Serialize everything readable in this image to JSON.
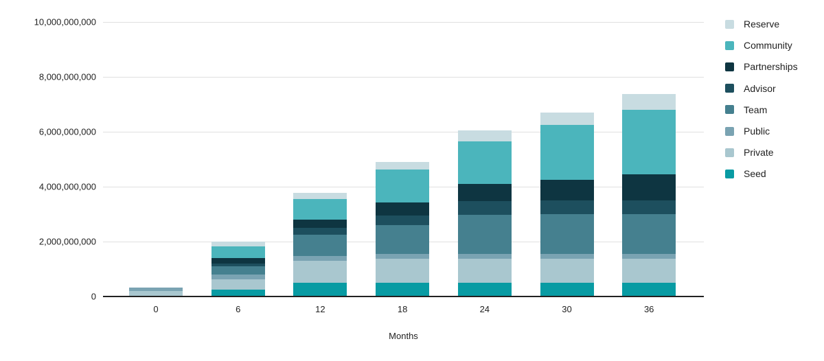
{
  "chart_data": {
    "type": "bar",
    "stacked": true,
    "xlabel": "Months",
    "ylabel": "",
    "categories": [
      "0",
      "6",
      "12",
      "18",
      "24",
      "30",
      "36"
    ],
    "ylim": [
      0,
      10000000000
    ],
    "grid": true,
    "legend_position": "right",
    "yticks": [
      {
        "value": 0,
        "label": "0"
      },
      {
        "value": 2000000000,
        "label": "2,000,000,000"
      },
      {
        "value": 4000000000,
        "label": "4,000,000,000"
      },
      {
        "value": 6000000000,
        "label": "6,000,000,000"
      },
      {
        "value": 8000000000,
        "label": "8,000,000,000"
      },
      {
        "value": 10000000000,
        "label": "10,000,000,000"
      }
    ],
    "series": [
      {
        "name": "Seed",
        "color": "#089BA3",
        "values": [
          0,
          250000000,
          500000000,
          500000000,
          500000000,
          500000000,
          500000000
        ]
      },
      {
        "name": "Private",
        "color": "#A9C7CF",
        "values": [
          200000000,
          375000000,
          800000000,
          875000000,
          875000000,
          875000000,
          875000000
        ]
      },
      {
        "name": "Public",
        "color": "#7AA3B2",
        "values": [
          125000000,
          175000000,
          175000000,
          175000000,
          175000000,
          175000000,
          175000000
        ]
      },
      {
        "name": "Team",
        "color": "#45808F",
        "values": [
          0,
          300000000,
          775000000,
          1050000000,
          1425000000,
          1450000000,
          1450000000
        ]
      },
      {
        "name": "Advisor",
        "color": "#1D4F5E",
        "values": [
          0,
          100000000,
          250000000,
          350000000,
          500000000,
          500000000,
          500000000
        ]
      },
      {
        "name": "Partnerships",
        "color": "#0E3541",
        "values": [
          0,
          200000000,
          300000000,
          475000000,
          625000000,
          750000000,
          950000000
        ]
      },
      {
        "name": "Community",
        "color": "#4BB5BC",
        "values": [
          0,
          425000000,
          750000000,
          1200000000,
          1550000000,
          2000000000,
          2350000000
        ]
      },
      {
        "name": "Reserve",
        "color": "#C8DCE1",
        "values": [
          0,
          175000000,
          225000000,
          275000000,
          400000000,
          450000000,
          575000000
        ]
      }
    ],
    "legend": [
      "Reserve",
      "Community",
      "Partnerships",
      "Advisor",
      "Team",
      "Public",
      "Private",
      "Seed"
    ]
  },
  "colors": {
    "background": "#FFFFFF",
    "grid": "#E0E0E0",
    "axis": "#212121",
    "text": "#222222"
  }
}
